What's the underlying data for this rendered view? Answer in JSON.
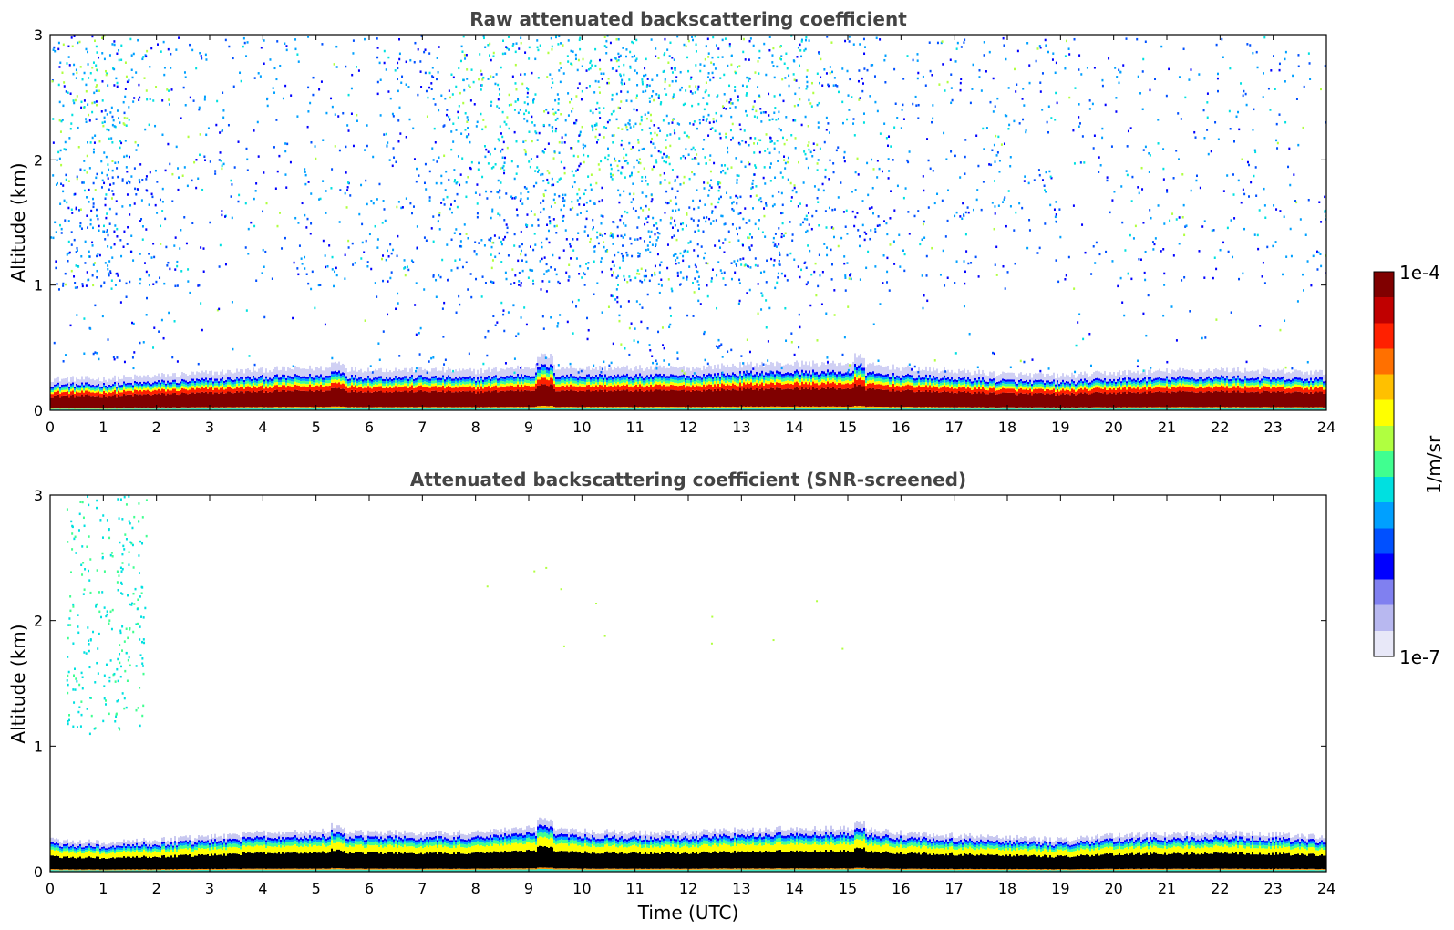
{
  "chart_data": [
    {
      "type": "heatmap",
      "title": "Raw attenuated backscattering coefficient",
      "xlabel": "",
      "ylabel": "Altitude (km)",
      "xlim": [
        0,
        24
      ],
      "ylim": [
        0,
        3
      ],
      "xticks": [
        "0",
        "1",
        "2",
        "3",
        "4",
        "5",
        "6",
        "7",
        "8",
        "9",
        "10",
        "11",
        "12",
        "13",
        "14",
        "15",
        "16",
        "17",
        "18",
        "19",
        "20",
        "21",
        "22",
        "23",
        "24"
      ],
      "yticks": [
        "0",
        "1",
        "2",
        "3"
      ],
      "scale": "log",
      "layer_top_km": [
        0.2,
        0.2,
        0.22,
        0.24,
        0.26,
        0.27,
        0.26,
        0.26,
        0.25,
        0.28,
        0.27,
        0.27,
        0.27,
        0.29,
        0.3,
        0.3,
        0.27,
        0.25,
        0.23,
        0.22,
        0.24,
        0.25,
        0.26,
        0.25,
        0.24
      ],
      "noise_region": "scattered signal above 1 km, strongest near 10-12 UTC and 0-2 UTC"
    },
    {
      "type": "heatmap",
      "title": "Attenuated backscattering coefficient (SNR-screened)",
      "xlabel": "Time (UTC)",
      "ylabel": "Altitude (km)",
      "xlim": [
        0,
        24
      ],
      "ylim": [
        0,
        3
      ],
      "xticks": [
        "0",
        "1",
        "2",
        "3",
        "4",
        "5",
        "6",
        "7",
        "8",
        "9",
        "10",
        "11",
        "12",
        "13",
        "14",
        "15",
        "16",
        "17",
        "18",
        "19",
        "20",
        "21",
        "22",
        "23",
        "24"
      ],
      "yticks": [
        "0",
        "1",
        "2",
        "3"
      ],
      "scale": "log",
      "layer_top_km": [
        0.22,
        0.2,
        0.22,
        0.24,
        0.27,
        0.28,
        0.27,
        0.27,
        0.27,
        0.3,
        0.28,
        0.27,
        0.27,
        0.29,
        0.3,
        0.3,
        0.27,
        0.25,
        0.24,
        0.22,
        0.25,
        0.26,
        0.27,
        0.26,
        0.24
      ]
    }
  ],
  "colorbar": {
    "label": "1/m/sr",
    "max_label": "1e-4",
    "min_label": "1e-7",
    "colormap": [
      "#e8e8f8",
      "#b8b8f0",
      "#8080f0",
      "#0000ff",
      "#0050ff",
      "#00a0ff",
      "#00e0e0",
      "#40ff90",
      "#b0ff40",
      "#ffff00",
      "#ffc000",
      "#ff7000",
      "#ff2000",
      "#c00000",
      "#800000"
    ]
  }
}
